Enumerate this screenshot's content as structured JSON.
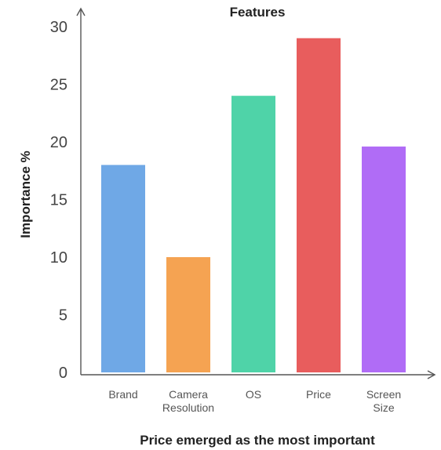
{
  "chart_data": {
    "type": "bar",
    "title": "Features",
    "xlabel": "Price emerged as the most important",
    "ylabel": "Importance %",
    "categories": [
      "Brand",
      "Camera Resolution",
      "OS",
      "Price",
      "Screen Size"
    ],
    "category_lines": [
      [
        "Brand"
      ],
      [
        "Camera",
        "Resolution"
      ],
      [
        "OS"
      ],
      [
        "Price"
      ],
      [
        "Screen",
        "Size"
      ]
    ],
    "values": [
      18,
      10,
      24,
      29,
      19.6
    ],
    "colors": [
      "#6fa8e6",
      "#f5a352",
      "#4fd3a8",
      "#e85d5d",
      "#b06cf6"
    ],
    "ylim": [
      0,
      30
    ],
    "yticks": [
      0,
      5,
      10,
      15,
      20,
      25,
      30
    ],
    "grid": false,
    "legend": "none"
  }
}
